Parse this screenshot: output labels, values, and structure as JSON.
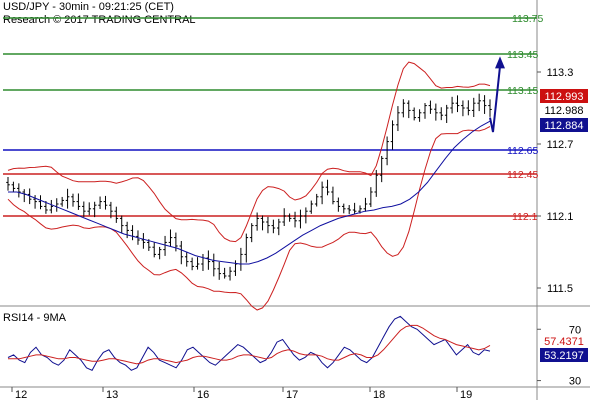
{
  "header": {
    "title": "USD/JPY - 30min - 09:21:25 (CET)",
    "research": "Research © 2017 TRADING CENTRAL"
  },
  "chart_data": {
    "type": "candlestick",
    "instrument": "USD/JPY",
    "timeframe": "30min",
    "main_ylim": [
      111.35,
      113.9
    ],
    "y_ticks": [
      "113.3",
      "112.7",
      "112.1",
      "111.5"
    ],
    "x_ticks": [
      "12",
      "13",
      "16",
      "17",
      "18",
      "19"
    ],
    "levels": [
      {
        "value": 113.75,
        "label": "113.75",
        "color": "#2e8b2e"
      },
      {
        "value": 113.45,
        "label": "113.45",
        "color": "#2e8b2e"
      },
      {
        "value": 113.15,
        "label": "113.15",
        "color": "#2e8b2e"
      },
      {
        "value": 112.65,
        "label": "112.65",
        "color": "#1010c0"
      },
      {
        "value": 112.45,
        "label": "112.45",
        "color": "#cc2020"
      },
      {
        "value": 112.1,
        "label": "112.1",
        "color": "#cc2020"
      }
    ],
    "price_badges": [
      {
        "label": "112.993",
        "value": 112.993,
        "bg": "#cc1010",
        "fg": "#ffffff"
      },
      {
        "label": "112.988",
        "value": 112.988,
        "bg": "#ffffff",
        "fg": "#000000"
      },
      {
        "label": "112.884",
        "value": 112.884,
        "bg": "#101090",
        "fg": "#ffffff"
      }
    ],
    "close_series": [
      112.36,
      112.33,
      112.3,
      112.28,
      112.24,
      112.22,
      112.18,
      112.15,
      112.18,
      112.2,
      112.23,
      112.26,
      112.22,
      112.18,
      112.14,
      112.16,
      112.19,
      112.22,
      112.19,
      112.14,
      112.08,
      112.02,
      111.98,
      111.93,
      111.9,
      111.88,
      111.84,
      111.78,
      111.82,
      111.88,
      111.92,
      111.85,
      111.76,
      111.72,
      111.68,
      111.7,
      111.75,
      111.72,
      111.66,
      111.62,
      111.6,
      111.64,
      111.7,
      111.78,
      111.92,
      112.02,
      112.08,
      112.05,
      112.02,
      112.0,
      112.05,
      112.1,
      112.08,
      112.06,
      112.1,
      112.14,
      112.2,
      112.26,
      112.34,
      112.3,
      112.22,
      112.18,
      112.16,
      112.15,
      112.14,
      112.16,
      112.2,
      112.3,
      112.44,
      112.58,
      112.72,
      112.86,
      112.96,
      113.04,
      112.98,
      112.92,
      112.96,
      113.02,
      112.99,
      112.96,
      112.94,
      113.0,
      113.04,
      113.02,
      113.0,
      112.98,
      113.04,
      113.06,
      113.02,
      112.988
    ],
    "ma_series": [
      112.3,
      112.3,
      112.28,
      112.25,
      112.22,
      112.19,
      112.16,
      112.13,
      112.1,
      112.07,
      112.04,
      112.01,
      111.98,
      111.95,
      111.93,
      111.91,
      111.89,
      111.87,
      111.85,
      111.83,
      111.8,
      111.77,
      111.75,
      111.73,
      111.72,
      111.71,
      111.7,
      111.7,
      111.72,
      111.75,
      111.79,
      111.84,
      111.89,
      111.94,
      111.98,
      112.02,
      112.05,
      112.08,
      112.1,
      112.12,
      112.14,
      112.15,
      112.17,
      112.18,
      112.2,
      112.24,
      112.3,
      112.38,
      112.48,
      112.58,
      112.67,
      112.74,
      112.8,
      112.85,
      112.89
    ],
    "projection": [
      [
        112.92,
        0
      ],
      [
        113.43,
        1
      ]
    ],
    "rsi": {
      "label": "RSI14 - 9MA",
      "ylim": [
        25,
        85
      ],
      "y_ticks": [
        "70",
        "30"
      ],
      "badges": [
        {
          "label": "57.4371",
          "value": 57.4371,
          "bg": "#ffffff",
          "fg": "#cc1010"
        },
        {
          "label": "53.2197",
          "value": 53.2197,
          "bg": "#101090",
          "fg": "#ffffff"
        }
      ],
      "series": [
        48,
        50,
        46,
        44,
        52,
        56,
        50,
        48,
        44,
        42,
        46,
        54,
        50,
        46,
        40,
        38,
        46,
        52,
        54,
        48,
        44,
        42,
        38,
        40,
        48,
        56,
        52,
        46,
        44,
        42,
        40,
        46,
        54,
        56,
        52,
        48,
        44,
        42,
        46,
        50,
        54,
        58,
        56,
        52,
        48,
        44,
        46,
        52,
        60,
        62,
        56,
        50,
        46,
        48,
        52,
        50,
        44,
        40,
        44,
        50,
        56,
        54,
        50,
        46,
        44,
        48,
        56,
        64,
        72,
        78,
        80,
        76,
        72,
        70,
        66,
        62,
        58,
        60,
        62,
        56,
        50,
        54,
        58,
        52,
        50,
        54,
        53
      ],
      "ma": [
        47,
        47,
        47,
        48,
        49,
        50,
        50,
        49,
        48,
        47,
        47,
        48,
        48,
        47,
        46,
        45,
        45,
        46,
        47,
        47,
        46,
        45,
        44,
        43,
        44,
        46,
        47,
        47,
        46,
        45,
        44,
        45,
        46,
        48,
        49,
        49,
        48,
        47,
        46,
        46,
        47,
        49,
        50,
        50,
        49,
        48,
        47,
        48,
        51,
        53,
        54,
        53,
        51,
        50,
        50,
        50,
        49,
        47,
        46,
        46,
        48,
        50,
        51,
        50,
        48,
        48,
        50,
        54,
        59,
        64,
        69,
        72,
        73,
        73,
        71,
        68,
        65,
        63,
        62,
        60,
        58,
        57,
        56,
        55,
        54,
        55,
        57.4
      ]
    }
  }
}
